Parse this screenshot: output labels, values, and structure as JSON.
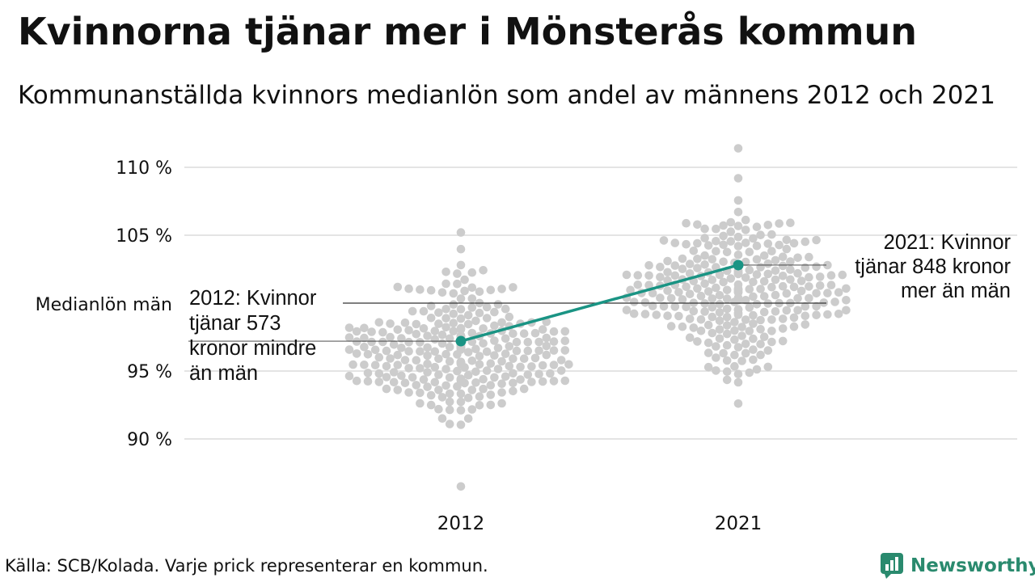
{
  "header": {
    "title": "Kvinnorna tjänar mer i Mönsterås kommun",
    "subtitle": "Kommunanställda kvinnors medianlön som andel av männens 2012 och 2021"
  },
  "footer": {
    "source": "Källa: SCB/Kolada. Varje prick representerar en kommun.",
    "brand": "Newsworthy"
  },
  "colors": {
    "dot": "#cccccc",
    "highlight": "#1a9484",
    "grid": "#e4e4e4",
    "reference": "#333333",
    "brand": "#2a8a6e"
  },
  "chart_data": {
    "type": "scatter",
    "subtype": "beeswarm",
    "categories": [
      "2012",
      "2021"
    ],
    "y_axis": {
      "ticks": [
        90,
        95,
        105,
        110
      ],
      "tick_labels": [
        "90 %",
        "95 %",
        "105 %",
        "110 %"
      ],
      "range": [
        86,
        111.5
      ],
      "grid": true
    },
    "reference_line": {
      "value": 100,
      "label": "Medianlön män"
    },
    "highlight_series": {
      "name": "Mönsterås kommun",
      "values": [
        {
          "x": "2012",
          "y": 97.2
        },
        {
          "x": "2021",
          "y": 102.8
        }
      ]
    },
    "annotations": [
      {
        "category": "2012",
        "lines": [
          "2012: Kvinnor",
          "tjänar 573",
          "kronor mindre",
          "än män"
        ]
      },
      {
        "category": "2021",
        "lines": [
          "2021: Kvinnor",
          "tjänar 848 kronor",
          "mer än män"
        ]
      }
    ],
    "distribution_summary": [
      {
        "category": "2012",
        "min": 86.5,
        "max": 105.2,
        "median": 96.4,
        "count": 290
      },
      {
        "category": "2021",
        "min": 92.6,
        "max": 111.4,
        "median": 101.2,
        "count": 290
      }
    ]
  }
}
